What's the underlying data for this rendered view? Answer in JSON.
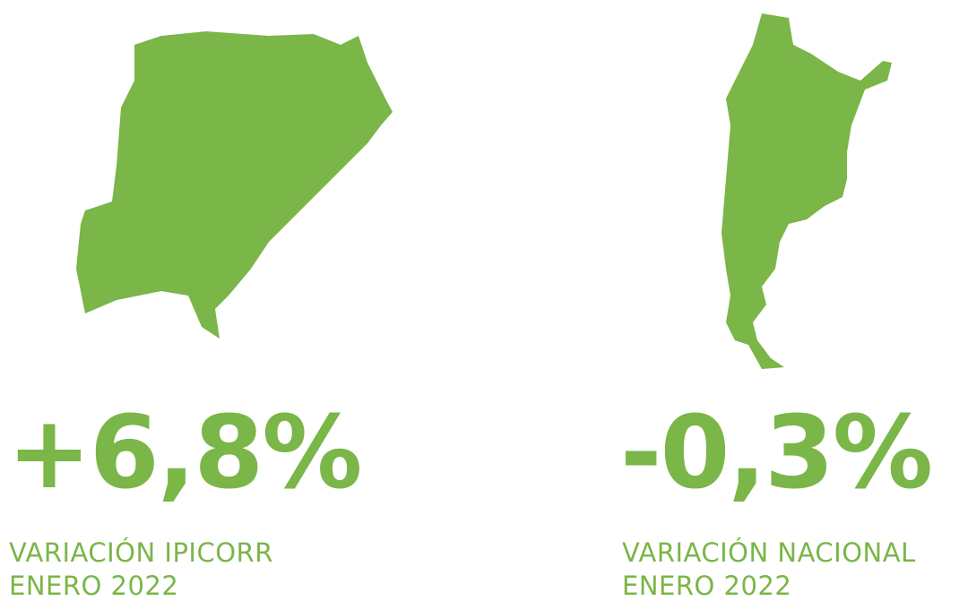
{
  "panels": [
    {
      "value": "+6,8%",
      "label": "VARIACIÓN IPICORR",
      "period": "ENERO 2022"
    },
    {
      "value": "-0,3%",
      "label": "VARIACIÓN NACIONAL",
      "period": "ENERO 2022"
    }
  ]
}
